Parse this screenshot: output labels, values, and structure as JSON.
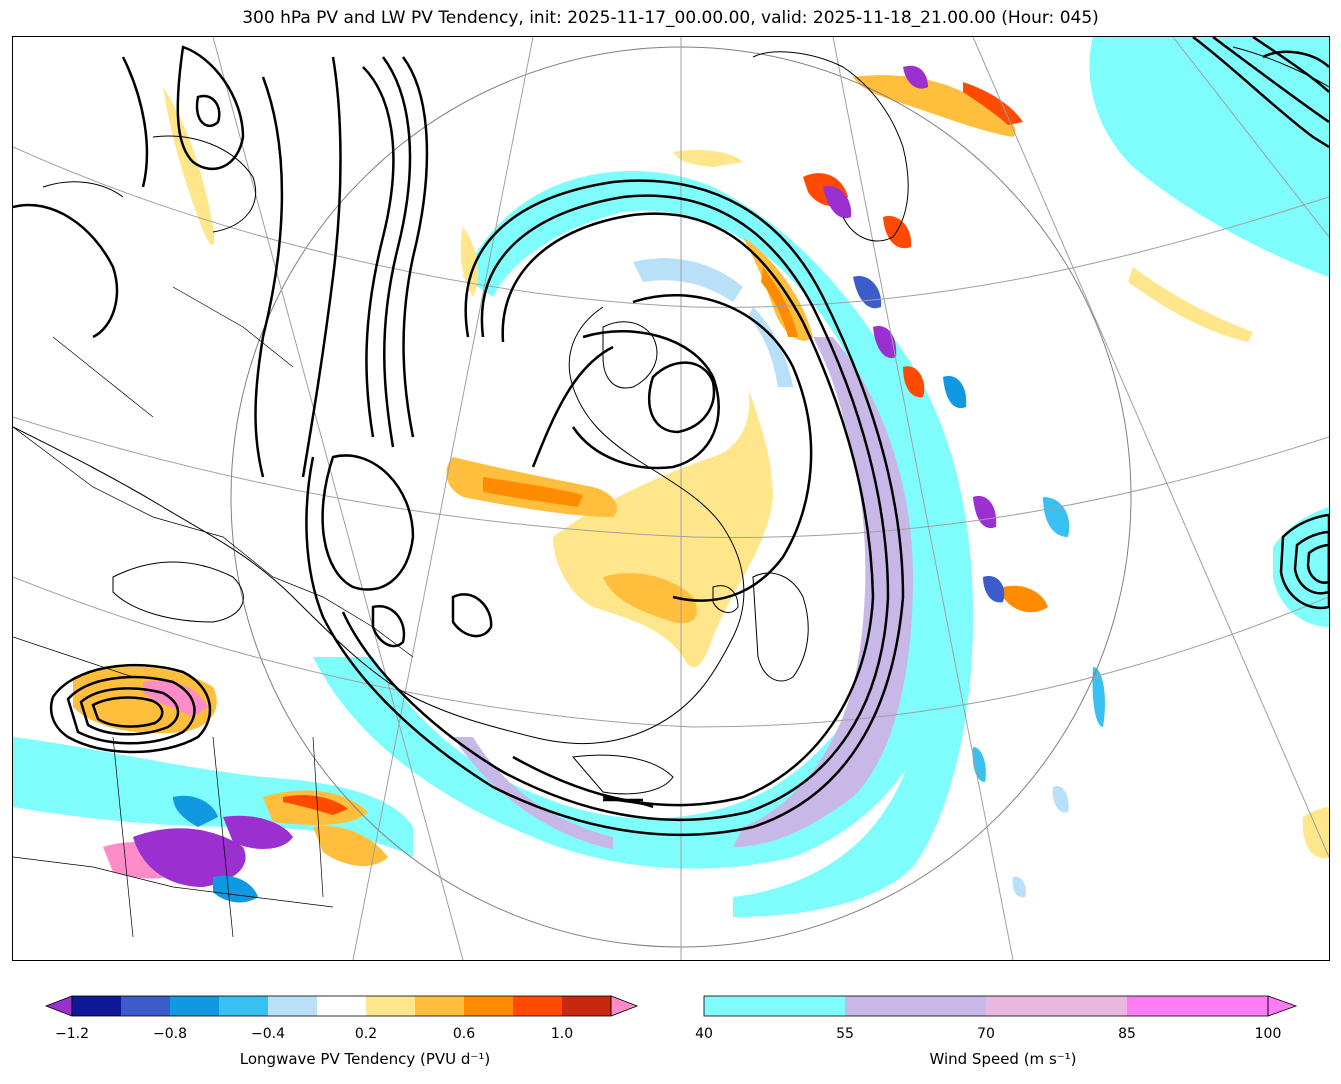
{
  "title": "300 hPa PV and LW PV Tendency, init: 2025-11-17_00.00.00, valid: 2025-11-18_21.00.00 (Hour: 045)",
  "colorbars": {
    "pv_tendency": {
      "label": "Longwave PV Tendency (PVU d⁻¹)",
      "tick_labels": [
        "−1.2",
        "−0.8",
        "−0.4",
        "0.2",
        "0.6",
        "1.0"
      ],
      "colors": [
        "#9b30d0",
        "#0f1896",
        "#3c5ccc",
        "#1098e0",
        "#38c0f0",
        "#b8e0f8",
        "#ffffff",
        "#ffe68a",
        "#ffbe3c",
        "#ff8c00",
        "#ff4a00",
        "#c82810",
        "#ff8cc8"
      ]
    },
    "wind_speed": {
      "label": "Wind Speed (m s⁻¹)",
      "tick_labels": [
        "40",
        "55",
        "70",
        "85",
        "100"
      ],
      "colors": [
        "#7ffdfd",
        "#c8b8e8",
        "#e8b8e0",
        "#ff7cf4"
      ]
    }
  },
  "map_layers": {
    "shading": [
      "wind speed",
      "longwave PV tendency"
    ],
    "contours": "300 hPa PV",
    "features": [
      "coastlines",
      "borders",
      "graticule"
    ]
  }
}
